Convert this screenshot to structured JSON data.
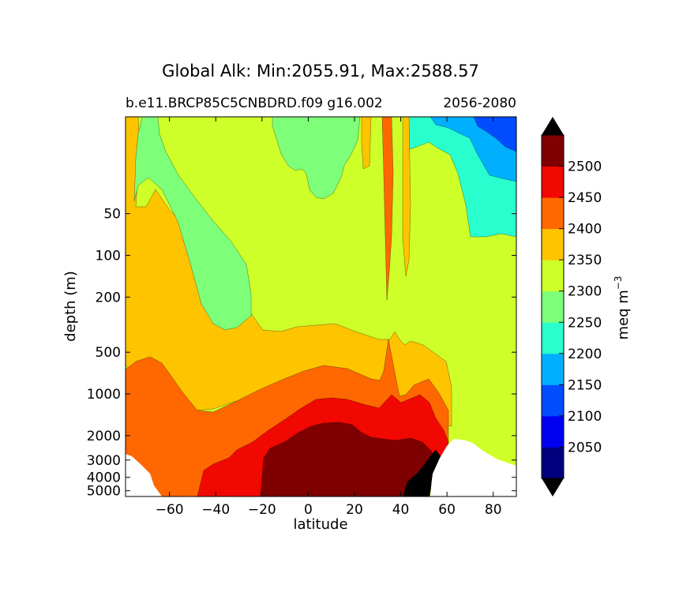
{
  "chart_data": {
    "type": "heatmap",
    "title": "Global Alk: Min:2055.91, Max:2588.57",
    "subtitle_left": "b.e11.BRCP85C5CNBDRD.f09 g16.002",
    "subtitle_right": "2056-2080",
    "xlabel": "latitude",
    "ylabel": "depth (m)",
    "colorbar_label": "meq m",
    "colorbar_label_exp": "−3",
    "xlim": [
      -79,
      90
    ],
    "ylim_depth_m": [
      5500,
      10
    ],
    "xticks": [
      -60,
      -40,
      -20,
      0,
      20,
      40,
      60,
      80
    ],
    "xtick_labels": [
      "−60",
      "−40",
      "−20",
      "0",
      "20",
      "40",
      "60",
      "80"
    ],
    "yticks": [
      50,
      100,
      200,
      500,
      1000,
      2000,
      3000,
      4000,
      5000
    ],
    "ytick_labels": [
      "50",
      "100",
      "200",
      "500",
      "1000",
      "2000",
      "3000",
      "4000",
      "5000"
    ],
    "levels": [
      2000,
      2050,
      2100,
      2150,
      2200,
      2250,
      2300,
      2350,
      2400,
      2450,
      2500,
      2550
    ],
    "level_labels": [
      "2050",
      "2100",
      "2150",
      "2200",
      "2250",
      "2300",
      "2350",
      "2400",
      "2450",
      "2500"
    ],
    "level_colors": [
      "#00007f",
      "#0000f1",
      "#004cff",
      "#00b0ff",
      "#29ffce",
      "#7dff7a",
      "#ceff29",
      "#ffc400",
      "#ff6800",
      "#f10800",
      "#7f0000"
    ],
    "extend": "both",
    "under_color": "#000000",
    "over_color": "#000000",
    "land_color": "#ffffff",
    "regions": [
      {
        "level": 2300,
        "desc": "background"
      },
      {
        "level": 2350,
        "desc": "southern hemisphere upper / mid-depth band"
      },
      {
        "level": 2400,
        "desc": "deep band"
      },
      {
        "level": 2450,
        "desc": "deep tropics"
      },
      {
        "level": 2500,
        "desc": "bottom water 20S-50N"
      },
      {
        "level": 2250,
        "desc": "southern mode water wedge"
      },
      {
        "level": 2250,
        "desc": "tropical surface tongue"
      },
      {
        "level": 2200,
        "desc": "northern surface"
      },
      {
        "level": 2150,
        "desc": "arctic surface"
      },
      {
        "level": 2100,
        "desc": "arctic surface core"
      },
      {
        "level": 2350,
        "desc": "subtropical north upper column"
      },
      {
        "level": 2400,
        "desc": "mediterranean-like column"
      }
    ]
  }
}
